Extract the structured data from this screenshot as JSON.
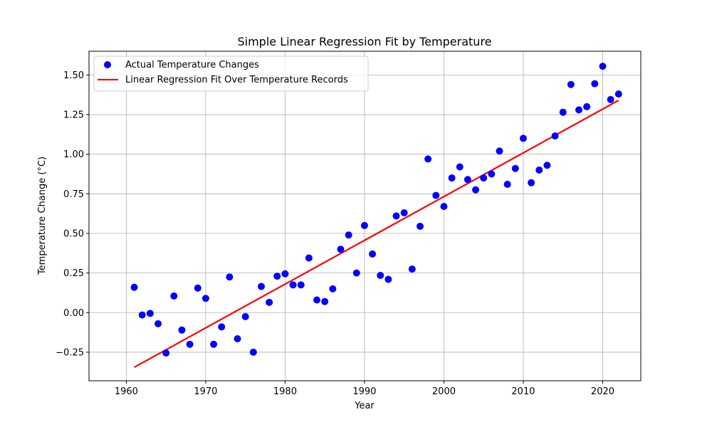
{
  "chart_data": {
    "type": "scatter",
    "title": "Simple Linear Regression Fit by Temperature",
    "xlabel": "Year",
    "ylabel": "Temperature Change (°C)",
    "xlim": [
      1955.3,
      2024.8
    ],
    "ylim": [
      -0.43,
      1.65
    ],
    "x_ticks": [
      1960,
      1970,
      1980,
      1990,
      2000,
      2010,
      2020
    ],
    "y_ticks": [
      -0.25,
      0.0,
      0.25,
      0.5,
      0.75,
      1.0,
      1.25,
      1.5
    ],
    "y_tick_labels": [
      "−0.25",
      "0.00",
      "0.25",
      "0.50",
      "0.75",
      "1.00",
      "1.25",
      "1.50"
    ],
    "grid": true,
    "legend_position": "top-left",
    "series": [
      {
        "name": "Actual Temperature Changes",
        "kind": "scatter",
        "color": "#0000ff",
        "x": [
          1961,
          1962,
          1963,
          1964,
          1965,
          1966,
          1967,
          1968,
          1969,
          1970,
          1971,
          1972,
          1973,
          1974,
          1975,
          1976,
          1977,
          1978,
          1979,
          1980,
          1981,
          1982,
          1983,
          1984,
          1985,
          1986,
          1987,
          1988,
          1989,
          1990,
          1991,
          1992,
          1993,
          1994,
          1995,
          1996,
          1997,
          1998,
          1999,
          2000,
          2001,
          2002,
          2003,
          2004,
          2005,
          2006,
          2007,
          2008,
          2009,
          2010,
          2011,
          2012,
          2013,
          2014,
          2015,
          2016,
          2017,
          2018,
          2019,
          2020,
          2021,
          2022
        ],
        "y": [
          0.16,
          -0.015,
          -0.005,
          -0.07,
          -0.255,
          0.105,
          -0.11,
          -0.2,
          0.155,
          0.09,
          -0.2,
          -0.09,
          0.225,
          -0.165,
          -0.025,
          -0.25,
          0.165,
          0.065,
          0.23,
          0.245,
          0.175,
          0.175,
          0.345,
          0.08,
          0.07,
          0.15,
          0.4,
          0.49,
          0.25,
          0.55,
          0.37,
          0.235,
          0.21,
          0.61,
          0.63,
          0.275,
          0.545,
          0.97,
          0.74,
          0.67,
          0.85,
          0.92,
          0.84,
          0.775,
          0.85,
          0.875,
          1.02,
          0.81,
          0.91,
          1.1,
          0.82,
          0.9,
          0.93,
          1.115,
          1.265,
          1.44,
          1.28,
          1.3,
          1.445,
          1.555,
          1.345,
          1.38
        ]
      },
      {
        "name": "Linear Regression Fit Over Temperature Records",
        "kind": "line",
        "color": "#ff0000",
        "x": [
          1961,
          2022
        ],
        "y": [
          -0.345,
          1.34
        ]
      }
    ]
  }
}
